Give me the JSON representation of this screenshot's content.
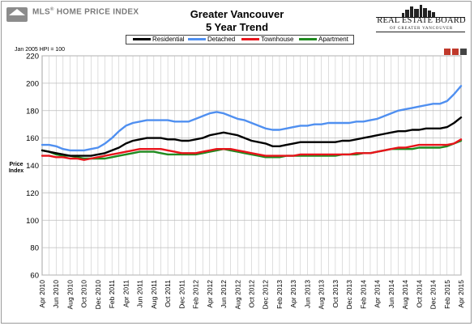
{
  "header": {
    "logo_mls": "MLS",
    "logo_mls_sup": "®",
    "logo_hpi": "HOME PRICE INDEX",
    "title_line1": "Greater Vancouver",
    "title_line2": "5 Year Trend",
    "board_name": "REAL ESTATE BOARD",
    "board_sub": "OF GREATER VANCOUVER"
  },
  "index_note": "Jan 2005 HPI = 100",
  "colors": {
    "Residential": "#000000",
    "Detached": "#4f8ff0",
    "Townhouse": "#e8141b",
    "Apartment": "#1f8a1f",
    "grid": "#bdbdbd"
  },
  "chart_data": {
    "type": "line",
    "title": "Greater Vancouver 5 Year Trend",
    "ylabel": "Price Index",
    "xlabel": "",
    "ylim": [
      60,
      220
    ],
    "yticks": [
      60,
      80,
      100,
      120,
      140,
      160,
      180,
      200,
      220
    ],
    "grid": true,
    "legend_position": "top-center",
    "x": [
      "Apr 2010",
      "May 2010",
      "Jun 2010",
      "Jul 2010",
      "Aug 2010",
      "Sep 2010",
      "Oct 2010",
      "Nov 2010",
      "Dec 2010",
      "Jan 2011",
      "Feb 2011",
      "Mar 2011",
      "Apr 2011",
      "May 2011",
      "Jun 2011",
      "Jul 2011",
      "Aug 2011",
      "Sep 2011",
      "Oct 2011",
      "Nov 2011",
      "Dec 2011",
      "Jan 2012",
      "Feb 2012",
      "Mar 2012",
      "Apr 2012",
      "May 2012",
      "Jun 2012",
      "Jul 2012",
      "Aug 2012",
      "Sep 2012",
      "Oct 2012",
      "Nov 2012",
      "Dec 2012",
      "Jan 2013",
      "Feb 2013",
      "Mar 2013",
      "Apr 2013",
      "May 2013",
      "Jun 2013",
      "Jul 2013",
      "Aug 2013",
      "Sep 2013",
      "Oct 2013",
      "Nov 2013",
      "Dec 2013",
      "Jan 2014",
      "Feb 2014",
      "Mar 2014",
      "Apr 2014",
      "May 2014",
      "Jun 2014",
      "Jul 2014",
      "Aug 2014",
      "Sep 2014",
      "Oct 2014",
      "Nov 2014",
      "Dec 2014",
      "Jan 2015",
      "Feb 2015",
      "Mar 2015",
      "Apr 2015"
    ],
    "x_tick_labels": [
      "Apr 2010",
      "Jun 2010",
      "Aug 2010",
      "Oct 2010",
      "Dec 2010",
      "Feb 2011",
      "Apr 2011",
      "Jun 2011",
      "Aug 2011",
      "Oct 2011",
      "Dec 2011",
      "Feb 2012",
      "Apr 2012",
      "Jun 2012",
      "Aug 2012",
      "Oct 2012",
      "Dec 2012",
      "Feb 2013",
      "Apr 2013",
      "Jun 2013",
      "Aug 2013",
      "Oct 2013",
      "Dec 2013",
      "Feb 2014",
      "Apr 2014",
      "Jun 2014",
      "Aug 2014",
      "Oct 2014",
      "Dec 2014",
      "Feb 2015",
      "Apr 2015"
    ],
    "series": [
      {
        "name": "Residential",
        "values": [
          151,
          150,
          149,
          148,
          147,
          147,
          147,
          147,
          148,
          149,
          151,
          153,
          156,
          158,
          159,
          160,
          160,
          160,
          159,
          159,
          158,
          158,
          159,
          160,
          162,
          163,
          164,
          163,
          162,
          160,
          158,
          157,
          156,
          154,
          154,
          155,
          156,
          157,
          157,
          157,
          157,
          157,
          157,
          158,
          158,
          159,
          160,
          161,
          162,
          163,
          164,
          165,
          165,
          166,
          166,
          167,
          167,
          167,
          168,
          171,
          175
        ]
      },
      {
        "name": "Detached",
        "values": [
          155,
          155,
          154,
          152,
          151,
          151,
          151,
          152,
          153,
          156,
          160,
          165,
          169,
          171,
          172,
          173,
          173,
          173,
          173,
          172,
          172,
          172,
          174,
          176,
          178,
          179,
          178,
          176,
          174,
          173,
          171,
          169,
          167,
          166,
          166,
          167,
          168,
          169,
          169,
          170,
          170,
          171,
          171,
          171,
          171,
          172,
          172,
          173,
          174,
          176,
          178,
          180,
          181,
          182,
          183,
          184,
          185,
          185,
          187,
          192,
          198
        ]
      },
      {
        "name": "Townhouse",
        "values": [
          147,
          147,
          146,
          146,
          145,
          145,
          144,
          145,
          146,
          147,
          148,
          149,
          150,
          151,
          152,
          152,
          152,
          152,
          151,
          150,
          149,
          149,
          149,
          150,
          151,
          152,
          152,
          152,
          151,
          150,
          149,
          148,
          147,
          147,
          147,
          147,
          147,
          148,
          148,
          148,
          148,
          148,
          148,
          148,
          148,
          149,
          149,
          149,
          150,
          151,
          152,
          153,
          153,
          154,
          155,
          155,
          155,
          155,
          155,
          156,
          159
        ]
      },
      {
        "name": "Apartment",
        "values": [
          151,
          150,
          148,
          147,
          147,
          146,
          145,
          145,
          145,
          145,
          146,
          147,
          148,
          149,
          150,
          150,
          150,
          149,
          148,
          148,
          148,
          148,
          148,
          149,
          150,
          151,
          152,
          151,
          150,
          149,
          148,
          147,
          146,
          146,
          146,
          147,
          147,
          147,
          147,
          147,
          147,
          147,
          147,
          148,
          148,
          148,
          149,
          149,
          150,
          151,
          152,
          152,
          152,
          152,
          153,
          153,
          153,
          153,
          154,
          156,
          158
        ]
      }
    ]
  }
}
